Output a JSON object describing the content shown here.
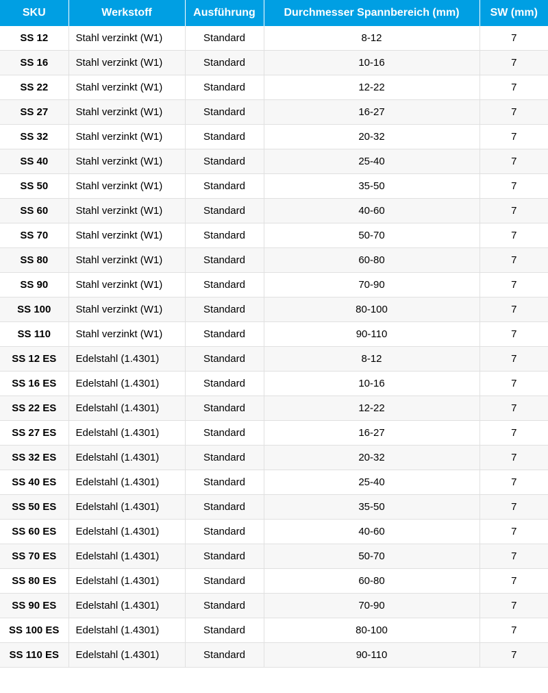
{
  "table": {
    "header_bg": "#009fe3",
    "header_color": "#ffffff",
    "row_even_bg": "#f7f7f7",
    "row_odd_bg": "#ffffff",
    "border_color": "#e0e0e0",
    "columns": [
      {
        "key": "sku",
        "label": "SKU"
      },
      {
        "key": "werkstoff",
        "label": "Werkstoff"
      },
      {
        "key": "ausfuehrung",
        "label": "Ausführung"
      },
      {
        "key": "durchmesser",
        "label": "Durchmesser Spannbereich (mm)"
      },
      {
        "key": "sw",
        "label": "SW (mm)"
      }
    ],
    "rows": [
      {
        "sku": "SS 12",
        "werkstoff": "Stahl verzinkt (W1)",
        "ausfuehrung": "Standard",
        "durchmesser": "8-12",
        "sw": "7"
      },
      {
        "sku": "SS 16",
        "werkstoff": "Stahl verzinkt (W1)",
        "ausfuehrung": "Standard",
        "durchmesser": "10-16",
        "sw": "7"
      },
      {
        "sku": "SS 22",
        "werkstoff": "Stahl verzinkt (W1)",
        "ausfuehrung": "Standard",
        "durchmesser": "12-22",
        "sw": "7"
      },
      {
        "sku": "SS 27",
        "werkstoff": "Stahl verzinkt (W1)",
        "ausfuehrung": "Standard",
        "durchmesser": "16-27",
        "sw": "7"
      },
      {
        "sku": "SS 32",
        "werkstoff": "Stahl verzinkt (W1)",
        "ausfuehrung": "Standard",
        "durchmesser": "20-32",
        "sw": "7"
      },
      {
        "sku": "SS 40",
        "werkstoff": "Stahl verzinkt (W1)",
        "ausfuehrung": "Standard",
        "durchmesser": "25-40",
        "sw": "7"
      },
      {
        "sku": "SS 50",
        "werkstoff": "Stahl verzinkt (W1)",
        "ausfuehrung": "Standard",
        "durchmesser": "35-50",
        "sw": "7"
      },
      {
        "sku": "SS 60",
        "werkstoff": "Stahl verzinkt (W1)",
        "ausfuehrung": "Standard",
        "durchmesser": "40-60",
        "sw": "7"
      },
      {
        "sku": "SS 70",
        "werkstoff": "Stahl verzinkt (W1)",
        "ausfuehrung": "Standard",
        "durchmesser": "50-70",
        "sw": "7"
      },
      {
        "sku": "SS 80",
        "werkstoff": "Stahl verzinkt (W1)",
        "ausfuehrung": "Standard",
        "durchmesser": "60-80",
        "sw": "7"
      },
      {
        "sku": "SS 90",
        "werkstoff": "Stahl verzinkt (W1)",
        "ausfuehrung": "Standard",
        "durchmesser": "70-90",
        "sw": "7"
      },
      {
        "sku": "SS 100",
        "werkstoff": "Stahl verzinkt (W1)",
        "ausfuehrung": "Standard",
        "durchmesser": "80-100",
        "sw": "7"
      },
      {
        "sku": "SS 110",
        "werkstoff": "Stahl verzinkt (W1)",
        "ausfuehrung": "Standard",
        "durchmesser": "90-110",
        "sw": "7"
      },
      {
        "sku": "SS 12 ES",
        "werkstoff": "Edelstahl (1.4301)",
        "ausfuehrung": "Standard",
        "durchmesser": "8-12",
        "sw": "7"
      },
      {
        "sku": "SS 16 ES",
        "werkstoff": "Edelstahl (1.4301)",
        "ausfuehrung": "Standard",
        "durchmesser": "10-16",
        "sw": "7"
      },
      {
        "sku": "SS 22 ES",
        "werkstoff": "Edelstahl (1.4301)",
        "ausfuehrung": "Standard",
        "durchmesser": "12-22",
        "sw": "7"
      },
      {
        "sku": "SS 27 ES",
        "werkstoff": "Edelstahl (1.4301)",
        "ausfuehrung": "Standard",
        "durchmesser": "16-27",
        "sw": "7"
      },
      {
        "sku": "SS 32 ES",
        "werkstoff": "Edelstahl (1.4301)",
        "ausfuehrung": "Standard",
        "durchmesser": "20-32",
        "sw": "7"
      },
      {
        "sku": "SS 40 ES",
        "werkstoff": "Edelstahl (1.4301)",
        "ausfuehrung": "Standard",
        "durchmesser": "25-40",
        "sw": "7"
      },
      {
        "sku": "SS 50 ES",
        "werkstoff": "Edelstahl (1.4301)",
        "ausfuehrung": "Standard",
        "durchmesser": "35-50",
        "sw": "7"
      },
      {
        "sku": "SS 60 ES",
        "werkstoff": "Edelstahl (1.4301)",
        "ausfuehrung": "Standard",
        "durchmesser": "40-60",
        "sw": "7"
      },
      {
        "sku": "SS 70 ES",
        "werkstoff": "Edelstahl (1.4301)",
        "ausfuehrung": "Standard",
        "durchmesser": "50-70",
        "sw": "7"
      },
      {
        "sku": "SS 80 ES",
        "werkstoff": "Edelstahl (1.4301)",
        "ausfuehrung": "Standard",
        "durchmesser": "60-80",
        "sw": "7"
      },
      {
        "sku": "SS 90 ES",
        "werkstoff": "Edelstahl (1.4301)",
        "ausfuehrung": "Standard",
        "durchmesser": "70-90",
        "sw": "7"
      },
      {
        "sku": "SS 100 ES",
        "werkstoff": "Edelstahl (1.4301)",
        "ausfuehrung": "Standard",
        "durchmesser": "80-100",
        "sw": "7"
      },
      {
        "sku": "SS 110 ES",
        "werkstoff": "Edelstahl (1.4301)",
        "ausfuehrung": "Standard",
        "durchmesser": "90-110",
        "sw": "7"
      }
    ]
  }
}
